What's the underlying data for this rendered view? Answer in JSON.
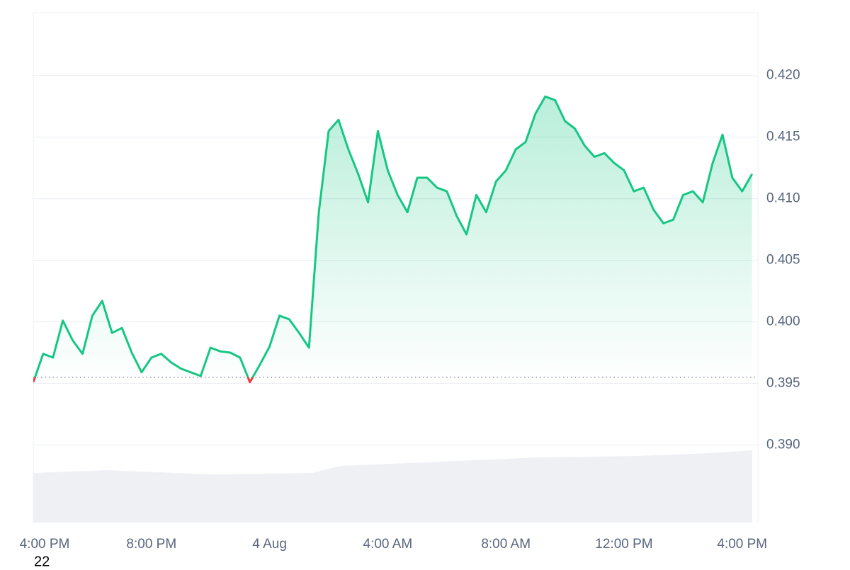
{
  "chart_data": {
    "type": "line",
    "footer_text": "22",
    "x": [
      "3 Aug 16:00",
      "3 Aug 16:20",
      "3 Aug 16:40",
      "3 Aug 17:00",
      "3 Aug 17:20",
      "3 Aug 17:40",
      "3 Aug 18:00",
      "3 Aug 18:20",
      "3 Aug 18:40",
      "3 Aug 19:00",
      "3 Aug 19:20",
      "3 Aug 19:40",
      "3 Aug 20:00",
      "3 Aug 20:20",
      "3 Aug 20:40",
      "3 Aug 21:00",
      "3 Aug 21:20",
      "3 Aug 21:40",
      "3 Aug 22:00",
      "3 Aug 22:20",
      "3 Aug 22:40",
      "3 Aug 23:00",
      "3 Aug 23:20",
      "3 Aug 23:40",
      "4 Aug 00:00",
      "4 Aug 00:20",
      "4 Aug 00:40",
      "4 Aug 01:00",
      "4 Aug 01:20",
      "4 Aug 01:40",
      "4 Aug 02:00",
      "4 Aug 02:20",
      "4 Aug 02:40",
      "4 Aug 03:00",
      "4 Aug 03:20",
      "4 Aug 03:40",
      "4 Aug 04:00",
      "4 Aug 04:20",
      "4 Aug 04:40",
      "4 Aug 05:00",
      "4 Aug 05:20",
      "4 Aug 05:40",
      "4 Aug 06:00",
      "4 Aug 06:20",
      "4 Aug 06:40",
      "4 Aug 07:00",
      "4 Aug 07:20",
      "4 Aug 07:40",
      "4 Aug 08:00",
      "4 Aug 08:20",
      "4 Aug 08:40",
      "4 Aug 09:00",
      "4 Aug 09:20",
      "4 Aug 09:40",
      "4 Aug 10:00",
      "4 Aug 10:20",
      "4 Aug 10:40",
      "4 Aug 11:00",
      "4 Aug 11:20",
      "4 Aug 11:40",
      "4 Aug 12:00",
      "4 Aug 12:20",
      "4 Aug 12:40",
      "4 Aug 13:00",
      "4 Aug 13:20",
      "4 Aug 13:40",
      "4 Aug 14:00",
      "4 Aug 14:20",
      "4 Aug 14:40",
      "4 Aug 15:00",
      "4 Aug 15:20",
      "4 Aug 15:40",
      "4 Aug 16:00",
      "4 Aug 16:20"
    ],
    "series": [
      {
        "color": "#16c784",
        "color_below": "#ea3943",
        "values": [
          0.3951,
          0.3974,
          0.3971,
          0.4001,
          0.3985,
          0.3974,
          0.4005,
          0.4017,
          0.3991,
          0.3995,
          0.3975,
          0.3959,
          0.3971,
          0.3974,
          0.3967,
          0.3962,
          0.3959,
          0.3956,
          0.3979,
          0.3976,
          0.3975,
          0.3971,
          0.3951,
          0.3965,
          0.398,
          0.4005,
          0.4002,
          0.3991,
          0.3979,
          0.4089,
          0.4155,
          0.4164,
          0.414,
          0.412,
          0.4097,
          0.4155,
          0.4123,
          0.4103,
          0.4089,
          0.4117,
          0.4117,
          0.4109,
          0.4106,
          0.4086,
          0.4071,
          0.4103,
          0.4089,
          0.4114,
          0.4123,
          0.414,
          0.4146,
          0.4169,
          0.4183,
          0.418,
          0.4163,
          0.4157,
          0.4143,
          0.4134,
          0.4137,
          0.4129,
          0.4123,
          0.4106,
          0.4109,
          0.4091,
          0.408,
          0.4083,
          0.4103,
          0.4106,
          0.4097,
          0.4129,
          0.4152,
          0.4117,
          0.4106,
          0.412
        ]
      }
    ],
    "baseline": 0.3955,
    "xlim": [
      "3 Aug 16:00",
      "4 Aug 16:32"
    ],
    "xticks": [
      {
        "value": "3 Aug 16:00",
        "label": "4:00 PM"
      },
      {
        "value": "3 Aug 20:00",
        "label": "8:00 PM"
      },
      {
        "value": "4 Aug 00:00",
        "label": "4 Aug"
      },
      {
        "value": "4 Aug 04:00",
        "label": "4:00 AM"
      },
      {
        "value": "4 Aug 08:00",
        "label": "8:00 AM"
      },
      {
        "value": "4 Aug 12:00",
        "label": "12:00 PM"
      },
      {
        "value": "4 Aug 16:00",
        "label": "4:00 PM"
      }
    ],
    "ylim": [
      0.3837,
      0.4251
    ],
    "yticks": [
      {
        "value": 0.39,
        "label": "0.390"
      },
      0.395,
      {
        "value": 0.4,
        "label": "0.400"
      },
      0.405,
      {
        "value": 0.41,
        "label": "0.410"
      },
      0.415,
      {
        "value": 0.42,
        "label": "0.420"
      }
    ],
    "grid": true
  }
}
